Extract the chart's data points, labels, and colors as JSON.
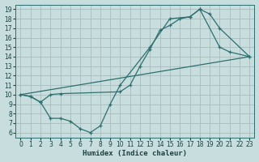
{
  "xlabel": "Humidex (Indice chaleur)",
  "bg_color": "#c8dede",
  "grid_color": "#aabcbc",
  "line_color": "#2d6e6e",
  "xlim": [
    -0.5,
    23.5
  ],
  "ylim": [
    5.5,
    19.5
  ],
  "xticks": [
    0,
    1,
    2,
    3,
    4,
    5,
    6,
    7,
    8,
    9,
    10,
    11,
    12,
    13,
    14,
    15,
    16,
    17,
    18,
    19,
    20,
    21,
    22,
    23
  ],
  "yticks": [
    6,
    7,
    8,
    9,
    10,
    11,
    12,
    13,
    14,
    15,
    16,
    17,
    18,
    19
  ],
  "line1_x": [
    0,
    1,
    2,
    3,
    4,
    10,
    11,
    12,
    13,
    14,
    15,
    16,
    17,
    18,
    19,
    20,
    23
  ],
  "line1_y": [
    10,
    9.8,
    9.2,
    10.0,
    10.1,
    10.3,
    11.0,
    13.0,
    14.8,
    16.8,
    17.3,
    18.0,
    18.2,
    19.0,
    18.5,
    17.0,
    14.0
  ],
  "line2_x": [
    0,
    23
  ],
  "line2_y": [
    10,
    14.0
  ],
  "line3_x": [
    0,
    1,
    2,
    3,
    4,
    5,
    6,
    7,
    8,
    9,
    10,
    13,
    15,
    17,
    18,
    20,
    21,
    23
  ],
  "line3_y": [
    10,
    9.8,
    9.2,
    7.5,
    7.5,
    7.2,
    6.4,
    6.0,
    6.7,
    9.0,
    11.0,
    15.0,
    18.0,
    18.2,
    19.0,
    15.0,
    14.5,
    14.0
  ]
}
